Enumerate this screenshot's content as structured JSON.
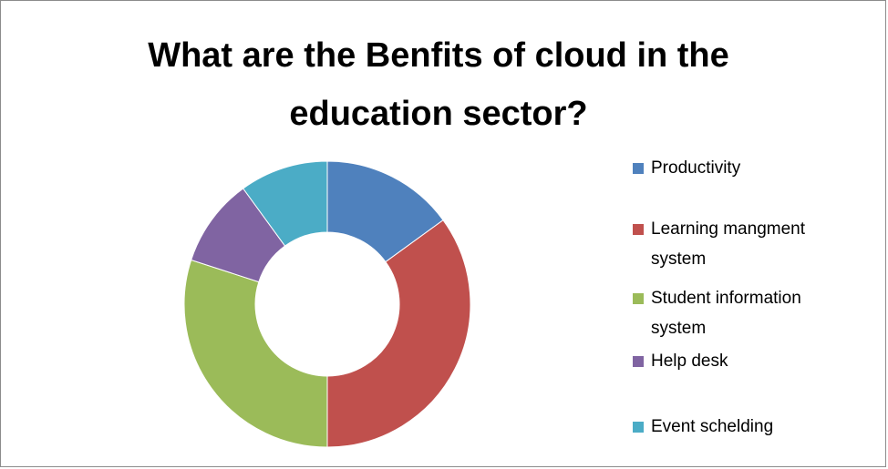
{
  "chart_data": {
    "type": "donut",
    "title": "What are the Benfits of cloud in the education sector?",
    "categories": [
      "Productivity",
      "Learning mangment system",
      "Student information system",
      "Help desk",
      "Event schelding"
    ],
    "values": [
      15,
      35,
      30,
      10,
      10
    ],
    "colors": [
      "#4f81bd",
      "#c0504d",
      "#9bbb59",
      "#8064a2",
      "#4bacc6"
    ],
    "legend": "right"
  }
}
